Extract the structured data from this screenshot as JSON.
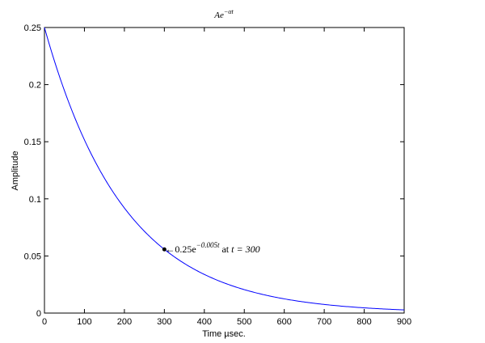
{
  "chart_data": {
    "type": "line",
    "title": {
      "base": "Ae",
      "exponent": "−αt"
    },
    "xlabel": "Time µsec.",
    "ylabel": "Amplitude",
    "xlim": [
      0,
      900
    ],
    "ylim": [
      0,
      0.25
    ],
    "x_ticks": [
      "0",
      "100",
      "200",
      "300",
      "400",
      "500",
      "600",
      "700",
      "800",
      "900"
    ],
    "y_ticks": [
      "0",
      "0.05",
      "0.1",
      "0.15",
      "0.2",
      "0.25"
    ],
    "grid": false,
    "series": [
      {
        "function": "0.25*exp(-0.005*t)",
        "amplitude": 0.25,
        "rate": 0.005,
        "x_range": [
          0,
          900
        ],
        "color": "#0000ff"
      }
    ],
    "annotation": {
      "x": 300,
      "y": 0.0558,
      "text_main": "0.25e",
      "text_exp": "−0.005t",
      "text_at": " at ",
      "text_eq": "t = 300"
    }
  }
}
